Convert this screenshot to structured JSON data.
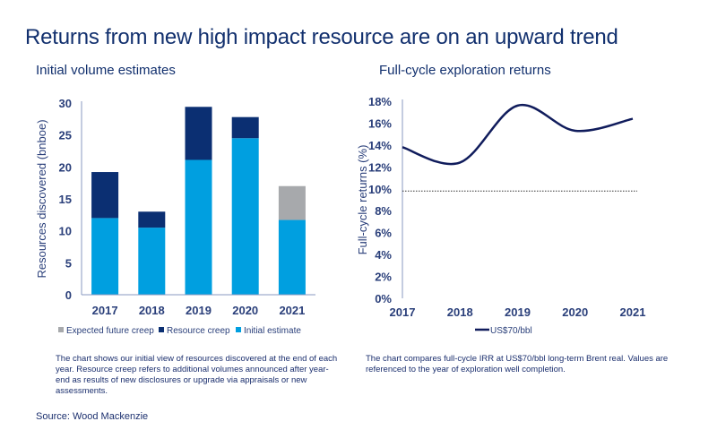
{
  "title": "Returns from new high impact resource are on an upward trend",
  "source": "Source: Wood Mackenzie",
  "colors": {
    "initial": "#009fe0",
    "creep": "#0b2f72",
    "future": "#a7a9ac",
    "line": "#101c5c"
  },
  "chart_data": [
    {
      "type": "bar",
      "stacked": true,
      "title": "Initial volume estimates",
      "ylabel": "Resources discovered (bnboe)",
      "xlabel": "",
      "ylim": [
        0,
        30
      ],
      "yticks": [
        0,
        5,
        10,
        15,
        20,
        25,
        30
      ],
      "categories": [
        "2017",
        "2018",
        "2019",
        "2020",
        "2021"
      ],
      "series": [
        {
          "name": "Initial estimate",
          "values": [
            12.0,
            10.5,
            21.1,
            24.5,
            11.7
          ]
        },
        {
          "name": "Resource creep",
          "values": [
            7.2,
            2.5,
            8.3,
            3.3,
            0
          ]
        },
        {
          "name": "Expected future creep",
          "values": [
            0,
            0,
            0,
            0,
            5.3
          ]
        }
      ],
      "legend": [
        "Expected future creep",
        "Resource creep",
        "Initial estimate"
      ],
      "legend_position": "bottom",
      "note": "The chart shows our initial view of resources discovered at the end of each year. Resource creep refers to additional volumes announced after year-end as results of new disclosures or upgrade via appraisals or new assessments."
    },
    {
      "type": "line",
      "title": "Full-cycle exploration returns",
      "ylabel": "Full-cycle returns (%)",
      "xlabel": "",
      "ylim": [
        0,
        18
      ],
      "yticks": [
        "0%",
        "2%",
        "4%",
        "6%",
        "8%",
        "10%",
        "12%",
        "14%",
        "16%",
        "18%"
      ],
      "x": [
        "2017",
        "2018",
        "2019",
        "2020",
        "2021"
      ],
      "series": [
        {
          "name": "US$70/bbl",
          "values": [
            13.8,
            12.4,
            17.6,
            15.3,
            16.4
          ]
        }
      ],
      "reference_line": 9.8,
      "legend_position": "bottom",
      "note": "The chart compares full-cycle IRR at US$70/bbl long-term Brent real. Values are referenced to the year of exploration well completion."
    }
  ]
}
